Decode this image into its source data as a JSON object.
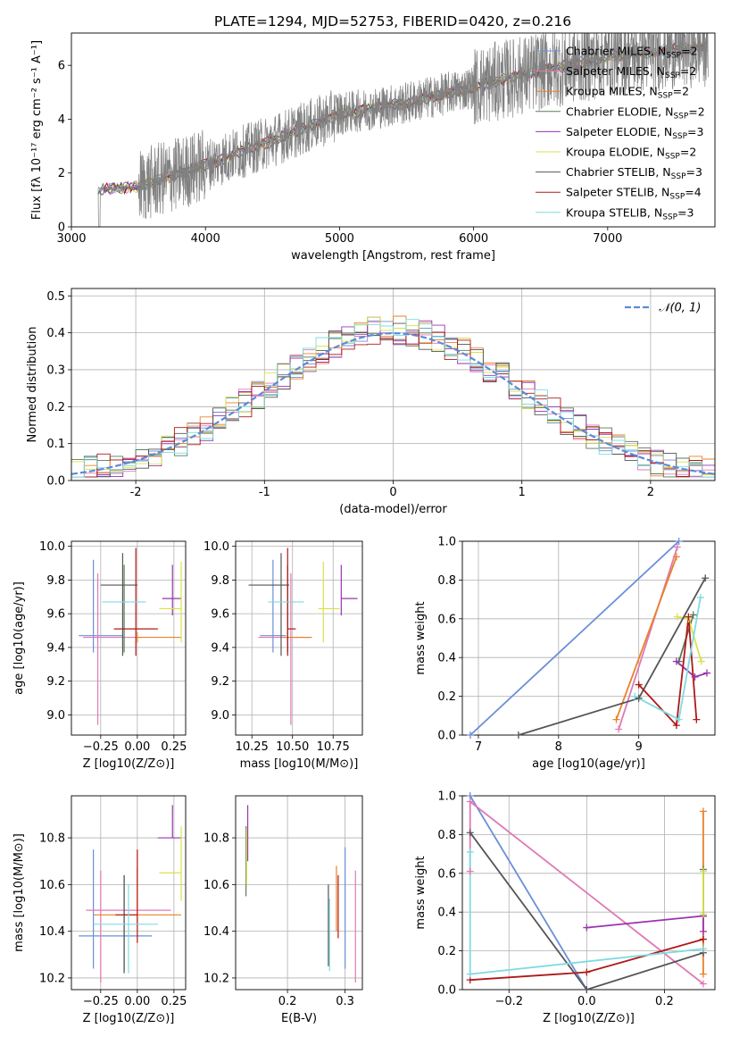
{
  "figure_title": "PLATE=1294, MJD=52753, FIBERID=0420, z=0.216",
  "models": [
    {
      "name": "Chabrier MILES",
      "color": "#6b8fd6",
      "nssp": "2"
    },
    {
      "name": "Salpeter MILES",
      "color": "#e079b5",
      "nssp": "2"
    },
    {
      "name": "Kroupa MILES",
      "color": "#e8822a",
      "nssp": "2"
    },
    {
      "name": "Chabrier ELODIE",
      "color": "#5a7a5a",
      "nssp": "2"
    },
    {
      "name": "Salpeter ELODIE",
      "color": "#9a33b0",
      "nssp": "3"
    },
    {
      "name": "Kroupa ELODIE",
      "color": "#d9e24a",
      "nssp": "2"
    },
    {
      "name": "Chabrier STELIB",
      "color": "#555555",
      "nssp": "3"
    },
    {
      "name": "Salpeter STELIB",
      "color": "#b01818",
      "nssp": "4"
    },
    {
      "name": "Kroupa STELIB",
      "color": "#7fdbe0",
      "nssp": "3"
    }
  ],
  "chart_data": [
    {
      "id": "spectrum",
      "type": "line",
      "xlabel": "wavelength [Angstrom, rest frame]",
      "ylabel": "Flux [fλ 10⁻¹⁷ erg cm⁻² s⁻¹ A⁻¹]",
      "xlim": [
        3000,
        7800
      ],
      "ylim": [
        0,
        7.2
      ],
      "xticks": [
        3000,
        4000,
        5000,
        6000,
        7000
      ],
      "yticks": [
        0,
        2,
        4,
        6
      ],
      "grid": false,
      "legend": "top-right",
      "observed": {
        "color": "#808080",
        "x_range": [
          3200,
          7750
        ],
        "trend": [
          [
            3200,
            1.4
          ],
          [
            3500,
            1.5
          ],
          [
            4000,
            2.3
          ],
          [
            4500,
            3.2
          ],
          [
            5000,
            4.2
          ],
          [
            5500,
            4.6
          ],
          [
            6000,
            5.2
          ],
          [
            6500,
            5.8
          ],
          [
            7000,
            6.3
          ],
          [
            7500,
            6.6
          ],
          [
            7750,
            6.7
          ]
        ]
      }
    },
    {
      "id": "residuals",
      "type": "histogram",
      "xlabel": "(data-model)/error",
      "ylabel": "Normed distribution",
      "xlim": [
        -2.5,
        2.5
      ],
      "ylim": [
        0,
        0.52
      ],
      "xticks": [
        -2,
        -1,
        0,
        1,
        2
      ],
      "yticks": [
        0.0,
        0.1,
        0.2,
        0.3,
        0.4,
        0.5
      ],
      "grid": true,
      "legend": "top-right",
      "reference": {
        "label": "𝒩(0, 1)",
        "mean": 0,
        "sigma": 1,
        "color": "#5b8bd6",
        "dash": true
      },
      "bins": {
        "start": -2.5,
        "width": 0.1
      }
    },
    {
      "id": "age-vs-Z",
      "type": "errorbar",
      "xlabel": "Z [log10(Z/Z⊙)]",
      "ylabel": "age  [log10(age/yr)]",
      "xlim": [
        -0.45,
        0.33
      ],
      "ylim": [
        8.88,
        10.03
      ],
      "xticks": [
        -0.25,
        0.0,
        0.25
      ],
      "xticklabels": [
        "−0.25",
        "0.00",
        "0.25"
      ],
      "yticks": [
        9.0,
        9.2,
        9.4,
        9.6,
        9.8,
        10.0
      ],
      "grid": true,
      "points": [
        {
          "model": 0,
          "x": -0.3,
          "xerr": [
            0.1,
            0.2
          ],
          "y": 9.47,
          "yerr": [
            0.1,
            0.45
          ]
        },
        {
          "model": 1,
          "x": -0.27,
          "xerr": [
            0.1,
            0.3
          ],
          "y": 9.46,
          "yerr": [
            0.52,
            0.38
          ]
        },
        {
          "model": 2,
          "x": 0.0,
          "xerr": [
            0.0,
            0.3
          ],
          "y": 9.46,
          "yerr": [
            0.03,
            0.03
          ]
        },
        {
          "model": 3,
          "x": -0.09,
          "xerr": [
            0.0,
            0.0
          ],
          "y": 9.47,
          "yerr": [
            0.1,
            0.42
          ]
        },
        {
          "model": 4,
          "x": 0.24,
          "xerr": [
            0.07,
            0.06
          ],
          "y": 9.69,
          "yerr": [
            0.1,
            0.2
          ]
        },
        {
          "model": 5,
          "x": 0.3,
          "xerr": [
            0.15,
            0.0
          ],
          "y": 9.63,
          "yerr": [
            0.2,
            0.28
          ]
        },
        {
          "model": 6,
          "x": -0.1,
          "xerr": [
            0.15,
            0.1
          ],
          "y": 9.77,
          "yerr": [
            0.42,
            0.19
          ]
        },
        {
          "model": 7,
          "x": -0.01,
          "xerr": [
            0.15,
            0.15
          ],
          "y": 9.51,
          "yerr": [
            0.16,
            0.48
          ]
        },
        {
          "model": 8,
          "x": -0.06,
          "xerr": [
            0.18,
            0.12
          ],
          "y": 9.67,
          "yerr": [
            0.0,
            0.0
          ]
        }
      ]
    },
    {
      "id": "age-vs-mass",
      "type": "errorbar",
      "xlabel": "mass [log10(M/M⊙)]",
      "ylabel": "",
      "xlim": [
        10.15,
        10.93
      ],
      "ylim": [
        8.88,
        10.03
      ],
      "xticks": [
        10.25,
        10.5,
        10.75
      ],
      "xticklabels": [
        "10.25",
        "10.50",
        "10.75"
      ],
      "yticks": [
        9.0,
        9.2,
        9.4,
        9.6,
        9.8,
        10.0
      ],
      "grid": true,
      "points": [
        {
          "model": 0,
          "x": 10.38,
          "xerr": [
            0.08,
            0.08
          ],
          "y": 9.47,
          "yerr": [
            0.1,
            0.45
          ]
        },
        {
          "model": 1,
          "x": 10.49,
          "xerr": [
            0.2,
            0.12
          ],
          "y": 9.46,
          "yerr": [
            0.52,
            0.38
          ]
        },
        {
          "model": 2,
          "x": 10.47,
          "xerr": [
            0.03,
            0.15
          ],
          "y": 9.46,
          "yerr": [
            0.03,
            0.03
          ]
        },
        {
          "model": 3,
          "x": 10.47,
          "xerr": [
            0.0,
            0.0
          ],
          "y": 9.47,
          "yerr": [
            0.1,
            0.42
          ]
        },
        {
          "model": 4,
          "x": 10.8,
          "xerr": [
            0.0,
            0.1
          ],
          "y": 9.69,
          "yerr": [
            0.1,
            0.2
          ]
        },
        {
          "model": 5,
          "x": 10.69,
          "xerr": [
            0.03,
            0.1
          ],
          "y": 9.63,
          "yerr": [
            0.2,
            0.28
          ]
        },
        {
          "model": 6,
          "x": 10.43,
          "xerr": [
            0.2,
            0.05
          ],
          "y": 9.77,
          "yerr": [
            0.42,
            0.19
          ]
        },
        {
          "model": 7,
          "x": 10.47,
          "xerr": [
            0.0,
            0.05
          ],
          "y": 9.51,
          "yerr": [
            0.16,
            0.48
          ]
        },
        {
          "model": 8,
          "x": 10.47,
          "xerr": [
            0.12,
            0.1
          ],
          "y": 9.67,
          "yerr": [
            0.0,
            0.0
          ]
        }
      ]
    },
    {
      "id": "weight-vs-age",
      "type": "line",
      "xlabel": "age  [log10(age/yr)]",
      "ylabel": "mass weight",
      "xlim": [
        6.8,
        9.95
      ],
      "ylim": [
        0,
        1.0
      ],
      "xticks": [
        7,
        8,
        9
      ],
      "yticks": [
        0.0,
        0.2,
        0.4,
        0.6,
        0.8,
        1.0
      ],
      "grid": true,
      "series": [
        {
          "model": 0,
          "x": [
            6.9,
            9.5
          ],
          "y": [
            0.0,
            1.0
          ]
        },
        {
          "model": 1,
          "x": [
            8.75,
            9.48
          ],
          "y": [
            0.03,
            0.97
          ]
        },
        {
          "model": 2,
          "x": [
            8.72,
            9.47
          ],
          "y": [
            0.08,
            0.92
          ]
        },
        {
          "model": 3,
          "x": [
            9.5,
            9.68
          ],
          "y": [
            0.38,
            0.62
          ]
        },
        {
          "model": 4,
          "x": [
            9.47,
            9.7,
            9.85
          ],
          "y": [
            0.38,
            0.3,
            0.32
          ]
        },
        {
          "model": 5,
          "x": [
            9.48,
            9.62,
            9.78
          ],
          "y": [
            0.61,
            0.6,
            0.38
          ]
        },
        {
          "model": 6,
          "x": [
            7.5,
            9.0,
            9.83
          ],
          "y": [
            0.0,
            0.19,
            0.81
          ]
        },
        {
          "model": 7,
          "x": [
            9.0,
            9.47,
            9.62,
            9.72
          ],
          "y": [
            0.26,
            0.05,
            0.61,
            0.08
          ]
        },
        {
          "model": 8,
          "x": [
            8.95,
            9.5,
            9.77
          ],
          "y": [
            0.2,
            0.08,
            0.71
          ]
        }
      ]
    },
    {
      "id": "mass-vs-Z",
      "type": "errorbar",
      "xlabel": "Z [log10(Z/Z⊙)]",
      "ylabel": "mass [log10(M/M⊙)]",
      "xlim": [
        -0.45,
        0.33
      ],
      "ylim": [
        10.15,
        10.98
      ],
      "xticks": [
        -0.25,
        0.0,
        0.25
      ],
      "xticklabels": [
        "−0.25",
        "0.00",
        "0.25"
      ],
      "yticks": [
        10.2,
        10.4,
        10.6,
        10.8
      ],
      "grid": true,
      "points": [
        {
          "model": 0,
          "x": -0.3,
          "xerr": [
            0.1,
            0.4
          ],
          "y": 10.38,
          "yerr": [
            0.14,
            0.37
          ]
        },
        {
          "model": 1,
          "x": -0.25,
          "xerr": [
            0.1,
            0.48
          ],
          "y": 10.49,
          "yerr": [
            0.31,
            0.17
          ]
        },
        {
          "model": 2,
          "x": 0.0,
          "xerr": [
            0.3,
            0.3
          ],
          "y": 10.47,
          "yerr": [
            0.05,
            0.2
          ]
        },
        {
          "model": 3,
          "x": -0.09,
          "xerr": [
            0.0,
            0.0
          ],
          "y": 10.47,
          "yerr": [
            0.24,
            0.17
          ]
        },
        {
          "model": 4,
          "x": 0.24,
          "xerr": [
            0.1,
            0.06
          ],
          "y": 10.8,
          "yerr": [
            0.0,
            0.14
          ]
        },
        {
          "model": 5,
          "x": 0.3,
          "xerr": [
            0.15,
            0.0
          ],
          "y": 10.65,
          "yerr": [
            0.12,
            0.2
          ]
        },
        {
          "model": 6,
          "x": -0.09,
          "xerr": [
            0.0,
            0.0
          ],
          "y": 10.46,
          "yerr": [
            0.24,
            0.18
          ]
        },
        {
          "model": 7,
          "x": 0.0,
          "xerr": [
            0.15,
            0.0
          ],
          "y": 10.47,
          "yerr": [
            0.12,
            0.28
          ]
        },
        {
          "model": 8,
          "x": -0.06,
          "xerr": [
            0.24,
            0.2
          ],
          "y": 10.43,
          "yerr": [
            0.21,
            0.17
          ]
        }
      ]
    },
    {
      "id": "mass-vs-ebv",
      "type": "errorbar",
      "xlabel": "E(B-V)",
      "ylabel": "",
      "xlim": [
        0.11,
        0.33
      ],
      "ylim": [
        10.15,
        10.98
      ],
      "xticks": [
        0.2,
        0.3
      ],
      "xticklabels": [
        "0.2",
        "0.3"
      ],
      "yticks": [
        10.2,
        10.4,
        10.6,
        10.8
      ],
      "grid": true,
      "points": [
        {
          "model": 0,
          "x": 0.3,
          "y": 10.43,
          "yerr": [
            0.19,
            0.33
          ]
        },
        {
          "model": 1,
          "x": 0.318,
          "y": 10.43,
          "yerr": [
            0.25,
            0.23
          ]
        },
        {
          "model": 2,
          "x": 0.285,
          "y": 10.5,
          "yerr": [
            0.1,
            0.18
          ]
        },
        {
          "model": 3,
          "x": 0.128,
          "y": 10.65,
          "yerr": [
            0.1,
            0.2
          ]
        },
        {
          "model": 4,
          "x": 0.131,
          "y": 10.8,
          "yerr": [
            0.1,
            0.14
          ]
        },
        {
          "model": 5,
          "x": 0.129,
          "y": 10.7,
          "yerr": [
            0.1,
            0.14
          ]
        },
        {
          "model": 6,
          "x": 0.271,
          "y": 10.45,
          "yerr": [
            0.2,
            0.15
          ]
        },
        {
          "model": 7,
          "x": 0.288,
          "y": 10.47,
          "yerr": [
            0.1,
            0.17
          ]
        },
        {
          "model": 8,
          "x": 0.273,
          "y": 10.41,
          "yerr": [
            0.18,
            0.13
          ]
        }
      ]
    },
    {
      "id": "weight-vs-Z",
      "type": "line",
      "xlabel": "Z [log10(Z/Z⊙)]",
      "ylabel": "mass weight",
      "xlim": [
        -0.32,
        0.33
      ],
      "ylim": [
        0,
        1.0
      ],
      "xticks": [
        -0.2,
        0.0,
        0.2
      ],
      "xticklabels": [
        "−0.2",
        "0.0",
        "0.2"
      ],
      "yticks": [
        0.0,
        0.2,
        0.4,
        0.6,
        0.8,
        1.0
      ],
      "grid": true,
      "series": [
        {
          "model": 0,
          "x": [
            -0.3,
            0.0
          ],
          "y": [
            1.0,
            0.0
          ]
        },
        {
          "model": 1,
          "x": [
            -0.3,
            -0.3,
            0.3
          ],
          "y": [
            0.61,
            0.97,
            0.03
          ]
        },
        {
          "model": 2,
          "x": [
            0.3,
            0.3
          ],
          "y": [
            0.08,
            0.92
          ]
        },
        {
          "model": 3,
          "x": [
            0.3,
            0.3
          ],
          "y": [
            0.38,
            0.62
          ]
        },
        {
          "model": 4,
          "x": [
            0.0,
            0.3,
            0.3
          ],
          "y": [
            0.32,
            0.38,
            0.3
          ]
        },
        {
          "model": 5,
          "x": [
            0.3,
            0.3
          ],
          "y": [
            0.39,
            0.61
          ]
        },
        {
          "model": 6,
          "x": [
            -0.3,
            0.0,
            0.3
          ],
          "y": [
            0.81,
            0.0,
            0.19
          ]
        },
        {
          "model": 7,
          "x": [
            -0.3,
            0.0,
            0.3
          ],
          "y": [
            0.05,
            0.09,
            0.26
          ]
        },
        {
          "model": 8,
          "x": [
            -0.3,
            -0.3,
            0.3
          ],
          "y": [
            0.71,
            0.08,
            0.21
          ]
        }
      ]
    }
  ]
}
